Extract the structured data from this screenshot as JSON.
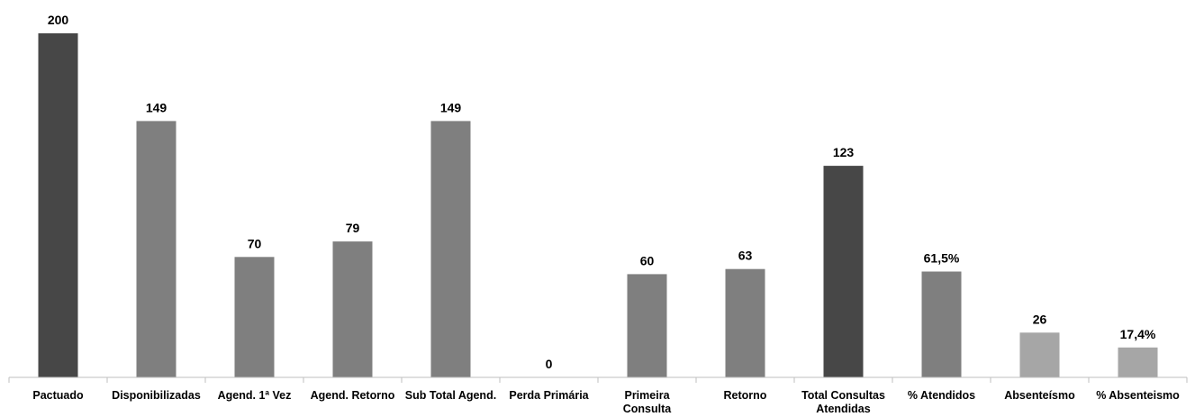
{
  "chart_data": {
    "type": "bar",
    "categories": [
      [
        "Pactuado"
      ],
      [
        "Disponibilizadas"
      ],
      [
        "Agend. 1ª Vez"
      ],
      [
        "Agend. Retorno"
      ],
      [
        "Sub Total Agend."
      ],
      [
        "Perda Primária"
      ],
      [
        "Primeira",
        "Consulta"
      ],
      [
        "Retorno"
      ],
      [
        "Total Consultas",
        "Atendidas"
      ],
      [
        "% Atendidos"
      ],
      [
        "Absenteísmo"
      ],
      [
        "% Absenteismo"
      ]
    ],
    "values": [
      200,
      149,
      70,
      79,
      149,
      0,
      60,
      63,
      123,
      61.5,
      26,
      17.4
    ],
    "data_labels": [
      "200",
      "149",
      "70",
      "79",
      "149",
      "0",
      "60",
      "63",
      "123",
      "61,5%",
      "26",
      "17,4%"
    ],
    "colors": [
      "#474747",
      "#7f7f7f",
      "#7f7f7f",
      "#7f7f7f",
      "#7f7f7f",
      "#7f7f7f",
      "#7f7f7f",
      "#7f7f7f",
      "#474747",
      "#7f7f7f",
      "#a6a6a6",
      "#a6a6a6"
    ],
    "ylim": [
      0,
      200
    ],
    "grid": false,
    "legend": "none"
  }
}
